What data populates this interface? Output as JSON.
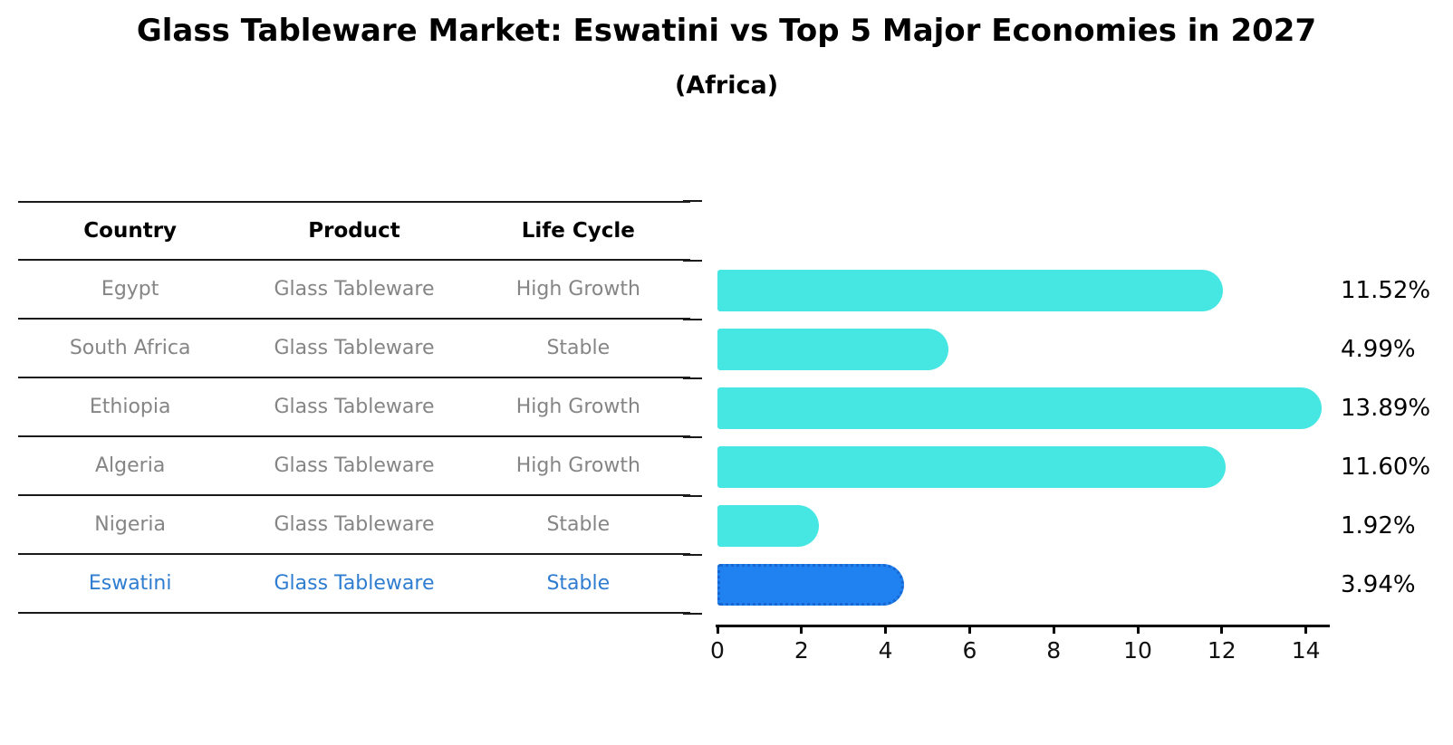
{
  "header": {
    "title": "Glass Tableware Market: Eswatini vs Top 5 Major Economies in 2027",
    "subtitle": "(Africa)"
  },
  "table": {
    "columns": [
      "Country",
      "Product",
      "Life Cycle"
    ],
    "rows": [
      {
        "country": "Egypt",
        "product": "Glass Tableware",
        "life_cycle": "High Growth",
        "highlight": false
      },
      {
        "country": "South Africa",
        "product": "Glass Tableware",
        "life_cycle": "Stable",
        "highlight": false
      },
      {
        "country": "Ethiopia",
        "product": "Glass Tableware",
        "life_cycle": "High Growth",
        "highlight": false
      },
      {
        "country": "Algeria",
        "product": "Glass Tableware",
        "life_cycle": "High Growth",
        "highlight": false
      },
      {
        "country": "Nigeria",
        "product": "Glass Tableware",
        "life_cycle": "Stable",
        "highlight": false
      },
      {
        "country": "Eswatini",
        "product": "Glass Tableware",
        "life_cycle": "Stable",
        "highlight": true
      }
    ]
  },
  "chart_data": {
    "type": "bar",
    "orientation": "horizontal",
    "title": "Glass Tableware Market: Eswatini vs Top 5 Major Economies in 2027",
    "subtitle": "(Africa)",
    "categories": [
      "Egypt",
      "South Africa",
      "Ethiopia",
      "Algeria",
      "Nigeria",
      "Eswatini"
    ],
    "values": [
      11.52,
      4.99,
      13.89,
      11.6,
      1.92,
      3.94
    ],
    "value_labels": [
      "11.52%",
      "4.99%",
      "13.89%",
      "11.60%",
      "1.92%",
      "3.94%"
    ],
    "highlight_index": 5,
    "x_ticks": [
      0,
      2,
      4,
      6,
      8,
      10,
      12,
      14
    ],
    "xlim": [
      0,
      14.6
    ],
    "xlabel": "",
    "ylabel": "",
    "grid": false,
    "legend": false,
    "bar_color": "#46E6E2",
    "highlight_color": "#1F82F0",
    "highlight_edge_color": "#1766D2",
    "value_label_color": "#000000",
    "row_text_color": "#858585",
    "highlight_text_color": "#2E7DD1"
  }
}
